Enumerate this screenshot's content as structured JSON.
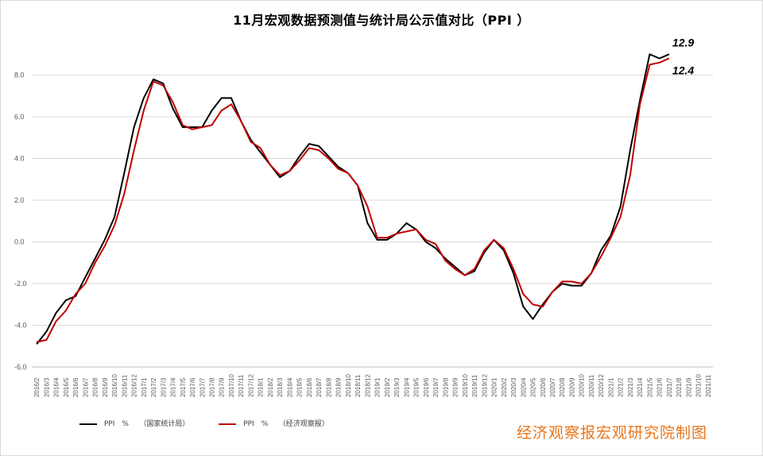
{
  "title": "11月宏观数据预测值与统计局公示值对比（PPI ）",
  "legend": [
    {
      "label": "PPI　%　　（国家统计局）",
      "color": "#000000"
    },
    {
      "label": "PPI　%　　（经济观察报）",
      "color": "#c00000"
    }
  ],
  "credit": "经济观察报宏观研究院制图",
  "chart_data": {
    "type": "line",
    "title": "11月宏观数据预测值与统计局公示值对比（PPI ）",
    "ylim": [
      -6,
      10
    ],
    "yticks": [
      -6,
      -4,
      -2,
      0,
      2,
      4,
      6,
      8
    ],
    "ytick_labels": [
      "-6.0",
      "-4.0",
      "-2.0",
      "0.0",
      "2.0",
      "4.0",
      "6.0",
      "8.0"
    ],
    "grid": true,
    "legend_position": "bottom-left",
    "x": [
      "2016/2",
      "2016/3",
      "2016/4",
      "2016/5",
      "2016/6",
      "2016/7",
      "2016/8",
      "2016/9",
      "2016/10",
      "2016/11",
      "2016/12",
      "2017/1",
      "2017/2",
      "2017/3",
      "2017/4",
      "2017/5",
      "2017/6",
      "2017/7",
      "2017/8",
      "2017/9",
      "2017/10",
      "2017/11",
      "2017/12",
      "2018/1",
      "2018/2",
      "2018/3",
      "2018/4",
      "2018/5",
      "2018/6",
      "2018/7",
      "2018/8",
      "2018/9",
      "2018/10",
      "2018/11",
      "2018/12",
      "2019/1",
      "2019/2",
      "2019/3",
      "2019/4",
      "2019/5",
      "2019/6",
      "2019/7",
      "2019/8",
      "2019/9",
      "2019/10",
      "2019/11",
      "2019/12",
      "2020/1",
      "2020/2",
      "2020/3",
      "2020/4",
      "2020/5",
      "2020/6",
      "2020/7",
      "2020/8",
      "2020/9",
      "2020/10",
      "2020/11",
      "2020/12",
      "2021/1",
      "2021/2",
      "2021/3",
      "2021/4",
      "2021/5",
      "2021/6",
      "2021/7",
      "2021/8",
      "2021/9",
      "2021/10",
      "2021/11"
    ],
    "series": [
      {
        "name": "PPI　%　　（国家统计局）",
        "color": "#000000",
        "values": [
          -4.9,
          -4.3,
          -3.4,
          -2.8,
          -2.6,
          -1.7,
          -0.8,
          0.1,
          1.2,
          3.3,
          5.5,
          6.9,
          7.8,
          7.6,
          6.4,
          5.5,
          5.5,
          5.5,
          6.3,
          6.9,
          6.9,
          5.8,
          4.9,
          4.3,
          3.7,
          3.1,
          3.4,
          4.1,
          4.7,
          4.6,
          4.1,
          3.6,
          3.3,
          2.7,
          0.9,
          0.1,
          0.1,
          0.4,
          0.9,
          0.6,
          0.0,
          -0.3,
          -0.8,
          -1.2,
          -1.6,
          -1.4,
          -0.5,
          0.1,
          -0.4,
          -1.5,
          -3.1,
          -3.7,
          -3.0,
          -2.4,
          -2.0,
          -2.1,
          -2.1,
          -1.5,
          -0.4,
          0.3,
          1.7,
          4.4,
          6.8,
          9.0,
          8.8,
          9.0,
          null,
          null,
          null,
          null
        ]
      },
      {
        "name": "PPI　%　　（经济观察报）",
        "color": "#c00000",
        "values": [
          -4.8,
          -4.7,
          -3.8,
          -3.3,
          -2.5,
          -2.0,
          -1.0,
          -0.2,
          0.8,
          2.3,
          4.4,
          6.3,
          7.7,
          7.5,
          6.7,
          5.6,
          5.4,
          5.5,
          5.6,
          6.3,
          6.6,
          5.8,
          4.8,
          4.5,
          3.7,
          3.2,
          3.4,
          3.9,
          4.5,
          4.4,
          4.0,
          3.5,
          3.3,
          2.7,
          1.7,
          0.2,
          0.2,
          0.4,
          0.5,
          0.6,
          0.1,
          -0.1,
          -0.9,
          -1.3,
          -1.6,
          -1.3,
          -0.4,
          0.1,
          -0.3,
          -1.3,
          -2.5,
          -3.0,
          -3.1,
          -2.4,
          -1.9,
          -1.9,
          -2.0,
          -1.5,
          -0.7,
          0.2,
          1.2,
          3.2,
          6.6,
          8.5,
          8.6,
          8.8,
          null,
          null,
          null,
          null
        ]
      }
    ],
    "annotations": [
      {
        "text": "12.9",
        "series": 0
      },
      {
        "text": "12.4",
        "series": 1
      }
    ]
  }
}
